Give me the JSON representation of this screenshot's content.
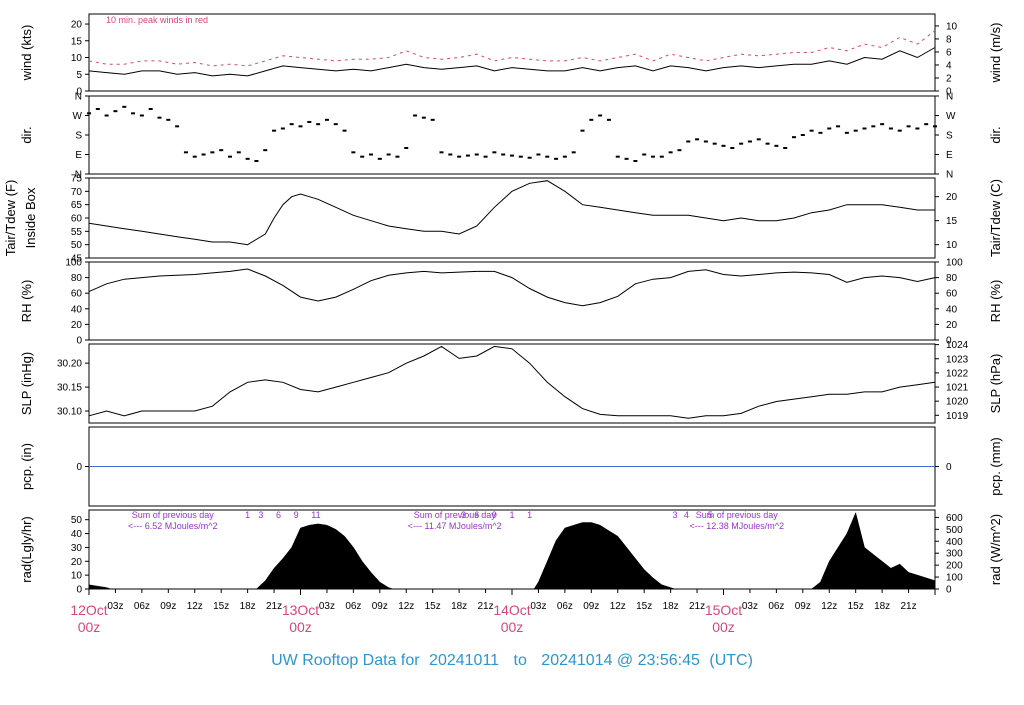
{
  "footer": {
    "prefix": "UW Rooftop Data for",
    "from": "20241011",
    "to_word": "to",
    "to": "20241014 @ 23:56:45",
    "tz": "(UTC)"
  },
  "colors": {
    "line": "#000000",
    "peak": "#d6477a",
    "pcp_line": "#3f6fd1",
    "annotation": "#9933cc",
    "day_label": "#d6477a",
    "footer": "#2d96d2",
    "frame": "#000000"
  },
  "x_axis": {
    "hours_span": 96,
    "hour_ticks": [
      "03z",
      "06z",
      "09z",
      "12z",
      "15z",
      "18z",
      "21z"
    ],
    "day_labels": [
      {
        "hour": 0,
        "date": "12Oct",
        "time": "00z"
      },
      {
        "hour": 24,
        "date": "13Oct",
        "time": "00z"
      },
      {
        "hour": 48,
        "date": "14Oct",
        "time": "00z"
      },
      {
        "hour": 72,
        "date": "15Oct",
        "time": "00z"
      }
    ]
  },
  "chart_data": [
    {
      "type": "line",
      "name": "wind",
      "ylabel_left": "wind (kts)",
      "ylabel_right": "wind (m/s)",
      "annotation": "10 min. peak winds in red",
      "ylim": [
        0,
        23
      ],
      "left_ticks": [
        0,
        5,
        10,
        15,
        20
      ],
      "right_ticks": [
        0,
        2,
        4,
        6,
        8,
        10
      ],
      "right_to_left_factor": 1.944,
      "series": [
        {
          "role": "wind",
          "x": [
            0,
            2,
            4,
            6,
            8,
            10,
            12,
            14,
            16,
            18,
            20,
            22,
            24,
            26,
            28,
            30,
            32,
            34,
            36,
            38,
            40,
            42,
            44,
            46,
            48,
            50,
            52,
            54,
            56,
            58,
            60,
            62,
            64,
            66,
            68,
            70,
            72,
            74,
            76,
            78,
            80,
            82,
            84,
            86,
            88,
            90,
            92,
            94,
            96
          ],
          "y": [
            6,
            5.5,
            5,
            6,
            6,
            5,
            5.5,
            4.5,
            5,
            4.5,
            6,
            7.5,
            7,
            6.5,
            6,
            6.5,
            6,
            7,
            8,
            7,
            6.5,
            7,
            7.5,
            6,
            7,
            6.5,
            6,
            6,
            7,
            6,
            7,
            7.5,
            6,
            7.5,
            7,
            6,
            7,
            7.5,
            7,
            7.5,
            8,
            8,
            9,
            8,
            10,
            9.5,
            12,
            10,
            13
          ]
        },
        {
          "role": "peak",
          "x": [
            0,
            2,
            4,
            6,
            8,
            10,
            12,
            14,
            16,
            18,
            20,
            22,
            24,
            26,
            28,
            30,
            32,
            34,
            36,
            38,
            40,
            42,
            44,
            46,
            48,
            50,
            52,
            54,
            56,
            58,
            60,
            62,
            64,
            66,
            68,
            70,
            72,
            74,
            76,
            78,
            80,
            82,
            84,
            86,
            88,
            90,
            92,
            94,
            96
          ],
          "y": [
            9,
            8,
            8,
            9,
            9,
            8,
            8.5,
            7.5,
            8,
            7.5,
            9,
            10.5,
            10,
            9.5,
            9,
            9.5,
            9.5,
            10,
            12,
            10,
            9.5,
            10,
            11,
            9,
            10,
            9.5,
            9,
            9,
            10,
            9,
            10,
            11,
            9,
            11,
            10,
            9,
            10,
            11,
            10.5,
            11,
            11.5,
            11.5,
            13,
            12,
            14,
            13,
            16,
            14,
            18
          ]
        }
      ]
    },
    {
      "type": "scatter",
      "name": "direction",
      "ylabel_left": "dir.",
      "ylabel_right": "dir.",
      "ylim": [
        0,
        360
      ],
      "tick_values": [
        0,
        90,
        180,
        270,
        360
      ],
      "tick_labels": [
        "N",
        "E",
        "S",
        "W",
        "N"
      ],
      "x": [
        0,
        1,
        2,
        3,
        4,
        5,
        6,
        7,
        8,
        9,
        10,
        11,
        12,
        13,
        14,
        15,
        16,
        17,
        18,
        19,
        20,
        21,
        22,
        23,
        24,
        25,
        26,
        27,
        28,
        29,
        30,
        31,
        32,
        33,
        34,
        35,
        36,
        37,
        38,
        39,
        40,
        41,
        42,
        43,
        44,
        45,
        46,
        47,
        48,
        49,
        50,
        51,
        52,
        53,
        54,
        55,
        56,
        57,
        58,
        59,
        60,
        61,
        62,
        63,
        64,
        65,
        66,
        67,
        68,
        69,
        70,
        71,
        72,
        73,
        74,
        75,
        76,
        77,
        78,
        79,
        80,
        81,
        82,
        83,
        84,
        85,
        86,
        87,
        88,
        89,
        90,
        91,
        92,
        93,
        94,
        95,
        96
      ],
      "y": [
        280,
        300,
        270,
        290,
        310,
        280,
        270,
        300,
        260,
        250,
        220,
        100,
        80,
        90,
        100,
        110,
        80,
        100,
        70,
        60,
        110,
        200,
        210,
        230,
        220,
        240,
        230,
        250,
        230,
        200,
        100,
        80,
        90,
        70,
        90,
        80,
        120,
        270,
        260,
        250,
        100,
        90,
        80,
        85,
        90,
        80,
        100,
        90,
        85,
        80,
        75,
        90,
        80,
        70,
        80,
        100,
        200,
        250,
        270,
        250,
        80,
        70,
        60,
        90,
        80,
        80,
        100,
        110,
        150,
        160,
        150,
        140,
        130,
        120,
        140,
        150,
        160,
        140,
        130,
        120,
        170,
        180,
        200,
        190,
        210,
        220,
        190,
        200,
        210,
        220,
        230,
        210,
        200,
        220,
        210,
        230,
        220
      ]
    },
    {
      "type": "line",
      "name": "temperature",
      "ylabel_left_lines": [
        "Tair/Tdew (F)",
        "Inside Box"
      ],
      "ylabel_right": "Tair/Tdew (C)",
      "ylim": [
        45,
        75
      ],
      "left_ticks": [
        45,
        50,
        55,
        60,
        65,
        70,
        75
      ],
      "right_ticks": [
        10,
        15,
        20
      ],
      "x": [
        0,
        2,
        4,
        6,
        8,
        10,
        12,
        14,
        16,
        18,
        20,
        21,
        22,
        23,
        24,
        25,
        26,
        28,
        30,
        32,
        34,
        36,
        38,
        40,
        42,
        44,
        46,
        48,
        50,
        52,
        54,
        56,
        58,
        60,
        62,
        64,
        66,
        68,
        70,
        72,
        74,
        76,
        78,
        80,
        82,
        84,
        86,
        88,
        90,
        92,
        94,
        96
      ],
      "y": [
        58,
        57,
        56,
        55,
        54,
        53,
        52,
        51,
        51,
        50,
        54,
        60,
        65,
        68,
        69,
        68,
        67,
        64,
        61,
        59,
        57,
        56,
        55,
        55,
        54,
        57,
        64,
        70,
        73,
        74,
        70,
        65,
        64,
        63,
        62,
        61,
        61,
        61,
        60,
        59,
        60,
        59,
        59,
        60,
        62,
        63,
        65,
        65,
        65,
        64,
        63,
        63
      ]
    },
    {
      "type": "line",
      "name": "humidity",
      "ylabel_left": "RH (%)",
      "ylabel_right": "RH (%)",
      "ylim": [
        0,
        100
      ],
      "left_ticks": [
        0,
        20,
        40,
        60,
        80,
        100
      ],
      "right_ticks": [
        0,
        20,
        40,
        60,
        80,
        100
      ],
      "x": [
        0,
        2,
        4,
        6,
        8,
        10,
        12,
        14,
        16,
        18,
        20,
        22,
        24,
        26,
        28,
        30,
        32,
        34,
        36,
        38,
        40,
        42,
        44,
        46,
        48,
        50,
        52,
        54,
        56,
        58,
        60,
        62,
        64,
        66,
        68,
        70,
        72,
        74,
        76,
        78,
        80,
        82,
        84,
        86,
        88,
        90,
        92,
        94,
        96
      ],
      "y": [
        62,
        72,
        78,
        80,
        82,
        83,
        84,
        86,
        88,
        91,
        82,
        70,
        55,
        50,
        55,
        65,
        76,
        83,
        86,
        88,
        86,
        87,
        88,
        88,
        80,
        66,
        55,
        48,
        44,
        48,
        56,
        72,
        78,
        80,
        88,
        90,
        84,
        82,
        84,
        86,
        87,
        86,
        84,
        74,
        80,
        82,
        80,
        75,
        80
      ]
    },
    {
      "type": "line",
      "name": "pressure",
      "ylabel_left": "SLP (inHg)",
      "ylabel_right": "SLP (hPa)",
      "ylim": [
        30.075,
        30.24
      ],
      "left_ticks": [
        30.1,
        30.15,
        30.2
      ],
      "right_ticks": [
        1019,
        1020,
        1021,
        1022,
        1023,
        1024
      ],
      "right_to_left_factor": 0.02953,
      "x": [
        0,
        2,
        4,
        6,
        8,
        10,
        12,
        14,
        16,
        18,
        20,
        22,
        24,
        26,
        28,
        30,
        32,
        34,
        36,
        38,
        40,
        42,
        44,
        46,
        48,
        50,
        52,
        54,
        56,
        58,
        60,
        62,
        64,
        66,
        68,
        70,
        72,
        74,
        76,
        78,
        80,
        82,
        84,
        86,
        88,
        90,
        92,
        94,
        96
      ],
      "y": [
        30.09,
        30.1,
        30.09,
        30.1,
        30.1,
        30.1,
        30.1,
        30.11,
        30.14,
        30.16,
        30.165,
        30.16,
        30.145,
        30.14,
        30.15,
        30.16,
        30.17,
        30.18,
        30.2,
        30.215,
        30.235,
        30.21,
        30.215,
        30.235,
        30.23,
        30.2,
        30.16,
        30.13,
        30.105,
        30.093,
        30.09,
        30.09,
        30.09,
        30.09,
        30.085,
        30.09,
        30.09,
        30.095,
        30.11,
        30.12,
        30.125,
        30.13,
        30.135,
        30.135,
        30.14,
        30.14,
        30.15,
        30.155,
        30.16
      ]
    },
    {
      "type": "line",
      "name": "precipitation",
      "ylabel_left": "pcp. (in)",
      "ylabel_right": "pcp. (mm)",
      "ylim": [
        -1,
        1
      ],
      "left_ticks": [
        0
      ],
      "right_ticks": [
        0
      ],
      "x": [
        0,
        96
      ],
      "y": [
        0,
        0
      ]
    },
    {
      "type": "area",
      "name": "radiation",
      "ylabel_left": "rad(Lgly/hr)",
      "ylabel_right": "rad (W/m^2)",
      "ylim": [
        0,
        57
      ],
      "left_ticks": [
        0,
        10,
        20,
        30,
        40,
        50
      ],
      "right_ticks": [
        0,
        100,
        200,
        300,
        400,
        500,
        600
      ],
      "right_to_left_factor": 0.0861,
      "hour_marks": [
        "1",
        "3",
        "6",
        "9",
        "1",
        "1",
        "3",
        "6",
        "9",
        "1",
        "1",
        "3",
        "4",
        "5"
      ],
      "annotations": [
        {
          "hour": 9.5,
          "line1": "Sum of previous day",
          "line2": "<--- 6.52 MJoules/m^2"
        },
        {
          "hour": 41.5,
          "line1": "Sum of previous day",
          "line2": "<--- 11.47 MJoules/m^2"
        },
        {
          "hour": 73.5,
          "line1": "Sum of previous day",
          "line2": "<--- 12.38 MJoules/m^2"
        }
      ],
      "x": [
        0,
        1,
        2,
        2.5,
        19,
        20,
        21,
        22,
        23,
        24,
        25,
        26,
        27,
        28,
        29,
        30,
        31,
        32,
        33,
        34,
        34.5,
        50.5,
        51,
        52,
        53,
        54,
        55,
        56,
        57,
        58,
        59,
        60,
        61,
        62,
        63,
        64,
        65,
        66,
        66.5,
        82,
        83,
        84,
        85,
        86,
        87,
        88,
        89,
        90,
        91,
        92,
        93,
        94,
        95,
        96
      ],
      "y": [
        3,
        2,
        1,
        0,
        0,
        6,
        15,
        22,
        30,
        44,
        46,
        47,
        46,
        43,
        38,
        30,
        20,
        12,
        5,
        1,
        0,
        0,
        5,
        20,
        35,
        44,
        46,
        48,
        48,
        46,
        42,
        38,
        30,
        22,
        14,
        8,
        3,
        1,
        0,
        0,
        5,
        20,
        30,
        40,
        55,
        30,
        25,
        20,
        15,
        18,
        12,
        10,
        8,
        6
      ]
    }
  ]
}
